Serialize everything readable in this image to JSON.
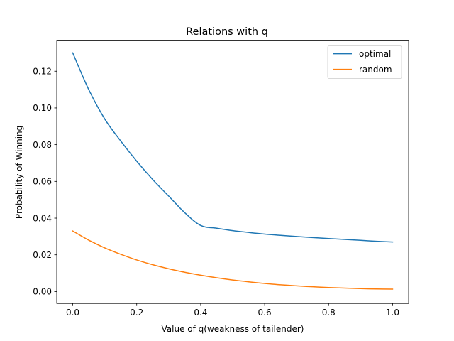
{
  "chart_data": {
    "type": "line",
    "title": "Relations with q",
    "xlabel": "Value of q(weakness of tailender)",
    "ylabel": "Probability of Winning",
    "xlim": [
      -0.05,
      1.05
    ],
    "ylim": [
      -0.0065,
      0.1365
    ],
    "xticks": [
      0.0,
      0.2,
      0.4,
      0.6,
      0.8,
      1.0
    ],
    "xtick_labels": [
      "0.0",
      "0.2",
      "0.4",
      "0.6",
      "0.8",
      "1.0"
    ],
    "yticks": [
      0.0,
      0.02,
      0.04,
      0.06,
      0.08,
      0.1,
      0.12
    ],
    "ytick_labels": [
      "0.00",
      "0.02",
      "0.04",
      "0.06",
      "0.08",
      "0.10",
      "0.12"
    ],
    "legend_position": "upper-right",
    "grid": false,
    "x": [
      0.0,
      0.05,
      0.1,
      0.15,
      0.2,
      0.25,
      0.3,
      0.35,
      0.4,
      0.45,
      0.5,
      0.55,
      0.6,
      0.65,
      0.7,
      0.75,
      0.8,
      0.85,
      0.9,
      0.95,
      1.0
    ],
    "series": [
      {
        "name": "optimal",
        "color": "#1f77b4",
        "values": [
          0.13,
          0.11,
          0.094,
          0.082,
          0.071,
          0.061,
          0.052,
          0.043,
          0.036,
          0.0345,
          0.0332,
          0.0322,
          0.0313,
          0.0306,
          0.03,
          0.0294,
          0.0289,
          0.0284,
          0.0279,
          0.0274,
          0.027
        ]
      },
      {
        "name": "random",
        "color": "#ff7f0e",
        "values": [
          0.033,
          0.028,
          0.0238,
          0.0203,
          0.0172,
          0.0146,
          0.0124,
          0.0105,
          0.0089,
          0.0075,
          0.0063,
          0.0053,
          0.0044,
          0.0037,
          0.0031,
          0.0026,
          0.0022,
          0.0019,
          0.0016,
          0.0014,
          0.0013
        ]
      }
    ]
  }
}
